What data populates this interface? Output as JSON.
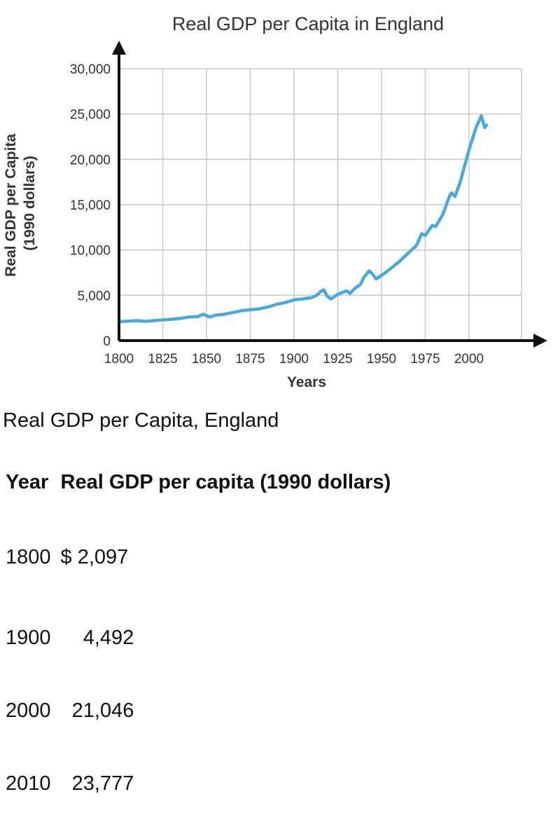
{
  "chart_data": {
    "type": "line",
    "title": "Real GDP per Capita in England",
    "xlabel": "Years",
    "ylabel_lines": [
      "Real GDP per Capita",
      "(1990 dollars)"
    ],
    "x_ticks": [
      1800,
      1825,
      1850,
      1875,
      1900,
      1925,
      1950,
      1975,
      2000
    ],
    "y_ticks": [
      0,
      5000,
      10000,
      15000,
      20000,
      25000,
      30000
    ],
    "y_tick_labels": [
      "0",
      "5,000",
      "10,000",
      "15,000",
      "20,000",
      "25,000",
      "30,000"
    ],
    "xlim": [
      1800,
      2030
    ],
    "ylim": [
      0,
      30000
    ],
    "grid": true,
    "series": [
      {
        "color": "#4aa8dc",
        "x": [
          1800,
          1805,
          1810,
          1815,
          1820,
          1825,
          1830,
          1835,
          1840,
          1845,
          1848,
          1850,
          1852,
          1855,
          1860,
          1865,
          1870,
          1875,
          1880,
          1885,
          1890,
          1895,
          1900,
          1905,
          1910,
          1913,
          1915,
          1917,
          1919,
          1921,
          1925,
          1930,
          1932,
          1935,
          1938,
          1940,
          1943,
          1945,
          1947,
          1950,
          1955,
          1960,
          1965,
          1970,
          1973,
          1975,
          1979,
          1981,
          1985,
          1989,
          1990,
          1992,
          1995,
          2000,
          2004,
          2007,
          2009,
          2010
        ],
        "y": [
          2097,
          2150,
          2200,
          2130,
          2200,
          2280,
          2350,
          2450,
          2600,
          2650,
          2900,
          2750,
          2600,
          2800,
          2900,
          3100,
          3300,
          3400,
          3500,
          3700,
          4000,
          4200,
          4492,
          4600,
          4750,
          5000,
          5400,
          5600,
          4900,
          4600,
          5100,
          5500,
          5200,
          5800,
          6200,
          7000,
          7700,
          7300,
          6800,
          7200,
          7900,
          8700,
          9600,
          10500,
          11800,
          11600,
          12700,
          12600,
          13900,
          16000,
          16300,
          15900,
          17500,
          21046,
          23500,
          24800,
          23500,
          23777
        ]
      }
    ]
  },
  "table": {
    "caption": "Real GDP per Capita, England",
    "headers": [
      "Year",
      "Real GDP per capita (1990 dollars)"
    ],
    "rows": [
      [
        "1800",
        "$ 2,097"
      ],
      [
        "1900",
        "    4,492"
      ],
      [
        "2000",
        "  21,046"
      ],
      [
        "2010",
        "  23,777"
      ]
    ]
  }
}
